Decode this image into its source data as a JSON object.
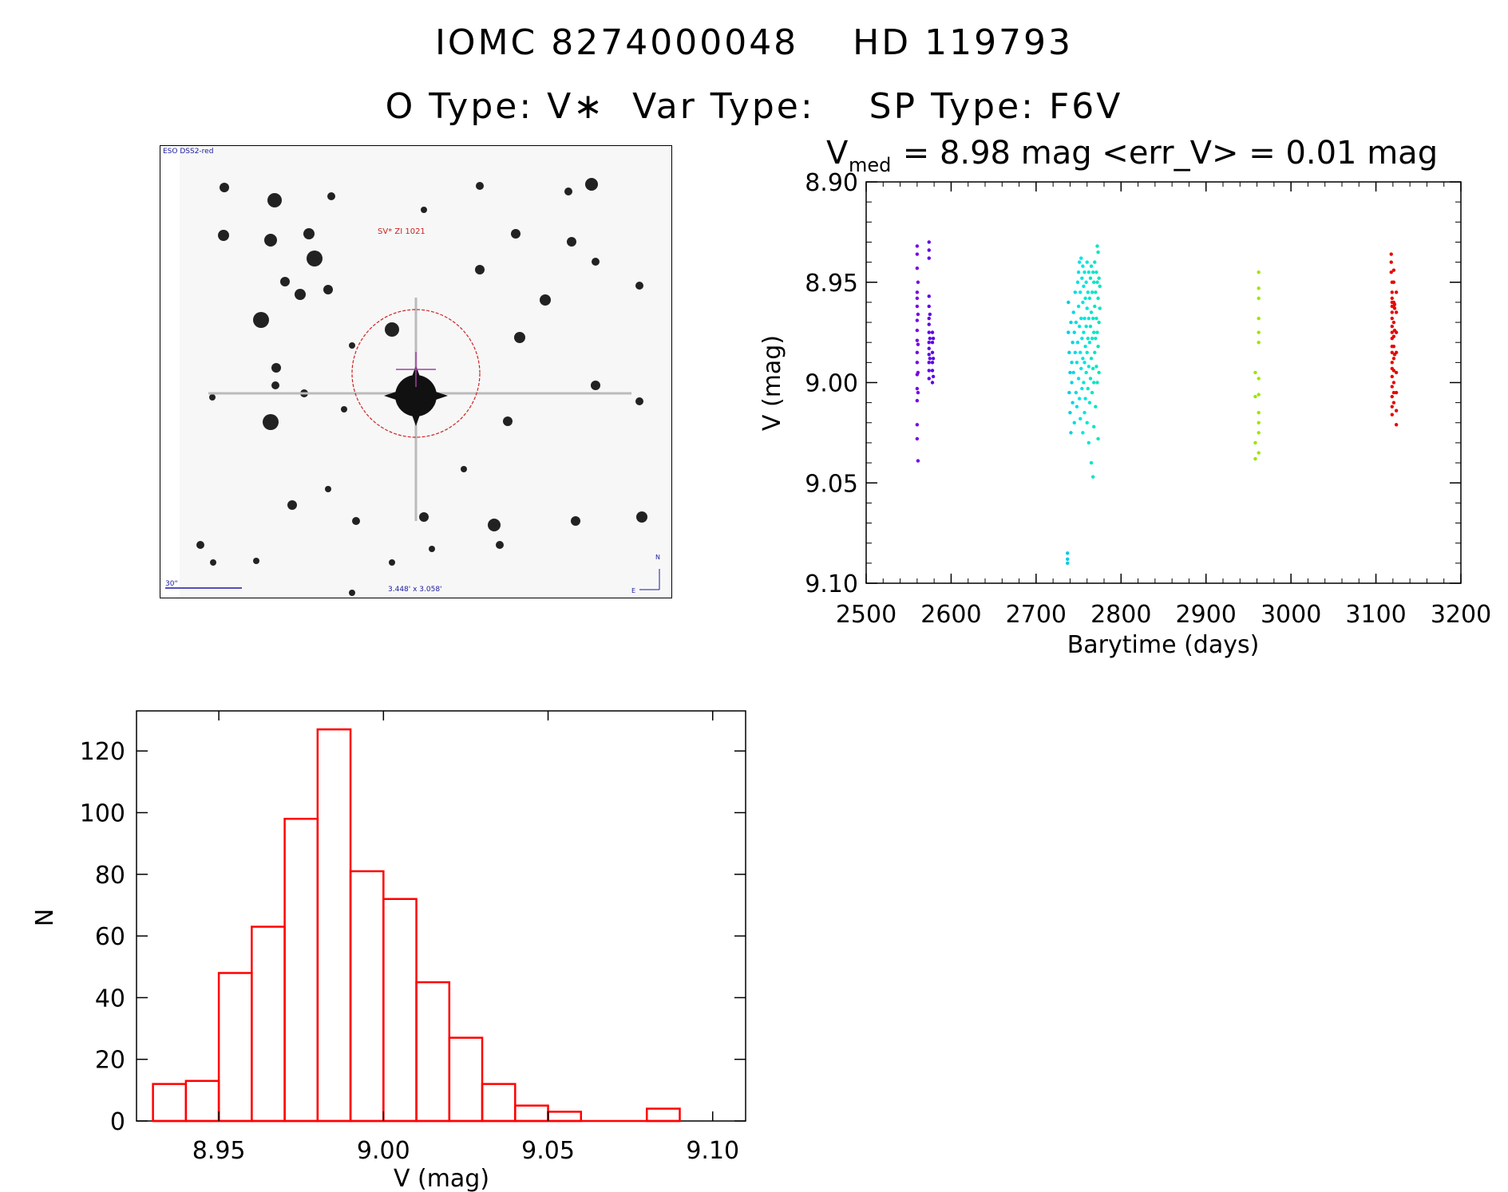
{
  "header": {
    "title_line1": "IOMC 8274000048    HD 119793",
    "title_line2": "O Type: V∗  Var Type:    SP Type: F6V"
  },
  "finder_chart": {
    "survey_label": "ESO DSS2-red",
    "object_label": "SV* ZI 1021",
    "scale_label": "30\"",
    "fov_label": "3.448' x 3.058'",
    "north_label": "N",
    "east_label": "E"
  },
  "chart_data": [
    {
      "type": "scatter",
      "title": "V_med = 8.98 mag <err_V> = 0.01 mag",
      "title_parts": {
        "v": "V",
        "sub": "med",
        "rest": " = 8.98 mag <err_V> = 0.01 mag"
      },
      "xlabel": "Barytime (days)",
      "ylabel": "V (mag)",
      "xlim": [
        2500,
        3200
      ],
      "ylim": [
        9.1,
        8.9
      ],
      "y_inverted": true,
      "xticks": [
        "2500",
        "2600",
        "2700",
        "2800",
        "2900",
        "3000",
        "3100",
        "3200"
      ],
      "yticks": [
        "8.90",
        "8.95",
        "9.00",
        "9.05",
        "9.10"
      ],
      "color_by_time": true,
      "points": [
        [
          2560,
          8.932
        ],
        [
          2560,
          8.936
        ],
        [
          2560,
          8.943
        ],
        [
          2560,
          8.955
        ],
        [
          2560,
          8.958
        ],
        [
          2560,
          8.962
        ],
        [
          2560,
          8.969
        ],
        [
          2560,
          8.974
        ],
        [
          2560,
          8.979
        ],
        [
          2560,
          8.985
        ],
        [
          2560,
          8.99
        ],
        [
          2560,
          8.996
        ],
        [
          2560,
          9.003
        ],
        [
          2560,
          9.009
        ],
        [
          2560,
          9.021
        ],
        [
          2560,
          9.028
        ],
        [
          2561,
          9.039
        ],
        [
          2561,
          8.95
        ],
        [
          2561,
          8.966
        ],
        [
          2561,
          8.981
        ],
        [
          2561,
          8.995
        ],
        [
          2561,
          9.005
        ],
        [
          2574,
          8.93
        ],
        [
          2574,
          8.934
        ],
        [
          2574,
          8.938
        ],
        [
          2574,
          8.957
        ],
        [
          2574,
          8.962
        ],
        [
          2574,
          8.968
        ],
        [
          2574,
          8.971
        ],
        [
          2574,
          8.975
        ],
        [
          2574,
          8.98
        ],
        [
          2574,
          8.983
        ],
        [
          2574,
          8.986
        ],
        [
          2574,
          8.99
        ],
        [
          2574,
          8.994
        ],
        [
          2574,
          8.998
        ],
        [
          2575,
          8.966
        ],
        [
          2575,
          8.978
        ],
        [
          2575,
          8.988
        ],
        [
          2578,
          8.975
        ],
        [
          2578,
          8.98
        ],
        [
          2578,
          8.985
        ],
        [
          2578,
          8.99
        ],
        [
          2578,
          8.994
        ],
        [
          2578,
          9.0
        ],
        [
          2579,
          8.978
        ],
        [
          2579,
          8.988
        ],
        [
          2579,
          8.997
        ],
        [
          2737,
          9.085
        ],
        [
          2737,
          9.088
        ],
        [
          2737,
          9.09
        ],
        [
          2738,
          8.96
        ],
        [
          2738,
          8.975
        ],
        [
          2739,
          8.985
        ],
        [
          2740,
          8.995
        ],
        [
          2739,
          9.005
        ],
        [
          2740,
          9.015
        ],
        [
          2741,
          9.025
        ],
        [
          2741,
          8.97
        ],
        [
          2742,
          8.99
        ],
        [
          2742,
          9.0
        ],
        [
          2743,
          8.98
        ],
        [
          2743,
          9.01
        ],
        [
          2744,
          8.965
        ],
        [
          2744,
          8.995
        ],
        [
          2745,
          8.975
        ],
        [
          2745,
          9.02
        ],
        [
          2746,
          8.955
        ],
        [
          2746,
          8.985
        ],
        [
          2747,
          9.005
        ],
        [
          2747,
          8.97
        ],
        [
          2748,
          8.99
        ],
        [
          2748,
          9.012
        ],
        [
          2749,
          8.95
        ],
        [
          2749,
          8.98
        ],
        [
          2750,
          8.945
        ],
        [
          2750,
          8.962
        ],
        [
          2750,
          8.998
        ],
        [
          2751,
          8.94
        ],
        [
          2751,
          8.972
        ],
        [
          2751,
          9.008
        ],
        [
          2752,
          8.955
        ],
        [
          2752,
          8.985
        ],
        [
          2752,
          9.018
        ],
        [
          2753,
          8.938
        ],
        [
          2753,
          8.968
        ],
        [
          2753,
          8.993
        ],
        [
          2754,
          8.948
        ],
        [
          2754,
          8.978
        ],
        [
          2754,
          9.003
        ],
        [
          2755,
          8.942
        ],
        [
          2755,
          8.96
        ],
        [
          2755,
          8.988
        ],
        [
          2755,
          9.025
        ],
        [
          2756,
          8.952
        ],
        [
          2756,
          8.975
        ],
        [
          2756,
          9.0
        ],
        [
          2757,
          8.945
        ],
        [
          2757,
          8.968
        ],
        [
          2757,
          8.99
        ],
        [
          2757,
          9.015
        ],
        [
          2758,
          8.958
        ],
        [
          2758,
          8.982
        ],
        [
          2758,
          9.008
        ],
        [
          2759,
          8.95
        ],
        [
          2759,
          8.972
        ],
        [
          2759,
          8.995
        ],
        [
          2760,
          8.94
        ],
        [
          2760,
          8.963
        ],
        [
          2760,
          8.985
        ],
        [
          2760,
          9.02
        ],
        [
          2761,
          8.955
        ],
        [
          2761,
          8.978
        ],
        [
          2761,
          9.003
        ],
        [
          2762,
          8.945
        ],
        [
          2762,
          8.968
        ],
        [
          2762,
          8.992
        ],
        [
          2762,
          9.03
        ],
        [
          2763,
          8.958
        ],
        [
          2763,
          8.98
        ],
        [
          2763,
          9.01
        ],
        [
          2764,
          8.948
        ],
        [
          2764,
          8.972
        ],
        [
          2764,
          8.998
        ],
        [
          2765,
          8.942
        ],
        [
          2765,
          8.965
        ],
        [
          2765,
          8.988
        ],
        [
          2765,
          9.04
        ],
        [
          2766,
          8.955
        ],
        [
          2766,
          8.978
        ],
        [
          2766,
          9.005
        ],
        [
          2767,
          8.945
        ],
        [
          2767,
          8.968
        ],
        [
          2767,
          8.993
        ],
        [
          2767,
          9.047
        ],
        [
          2768,
          8.95
        ],
        [
          2768,
          8.975
        ],
        [
          2768,
          9.0
        ],
        [
          2768,
          9.022
        ],
        [
          2769,
          8.94
        ],
        [
          2769,
          8.962
        ],
        [
          2769,
          8.985
        ],
        [
          2770,
          8.955
        ],
        [
          2770,
          8.978
        ],
        [
          2770,
          9.012
        ],
        [
          2771,
          8.945
        ],
        [
          2771,
          8.968
        ],
        [
          2771,
          8.992
        ],
        [
          2772,
          8.932
        ],
        [
          2772,
          8.95
        ],
        [
          2772,
          8.975
        ],
        [
          2772,
          9.0
        ],
        [
          2773,
          8.935
        ],
        [
          2773,
          8.958
        ],
        [
          2773,
          8.982
        ],
        [
          2773,
          9.028
        ],
        [
          2774,
          8.948
        ],
        [
          2774,
          8.97
        ],
        [
          2774,
          8.995
        ],
        [
          2775,
          8.952
        ],
        [
          2775,
          8.963
        ],
        [
          2958,
          8.995
        ],
        [
          2958,
          9.007
        ],
        [
          2958,
          9.03
        ],
        [
          2958,
          9.038
        ],
        [
          2962,
          8.945
        ],
        [
          2962,
          8.953
        ],
        [
          2962,
          8.958
        ],
        [
          2962,
          8.968
        ],
        [
          2962,
          8.975
        ],
        [
          2962,
          8.98
        ],
        [
          2962,
          8.998
        ],
        [
          2962,
          9.006
        ],
        [
          2962,
          9.015
        ],
        [
          2962,
          9.02
        ],
        [
          2962,
          9.025
        ],
        [
          2962,
          9.035
        ],
        [
          3118,
          8.936
        ],
        [
          3118,
          8.94
        ],
        [
          3118,
          8.945
        ],
        [
          3119,
          8.95
        ],
        [
          3119,
          8.955
        ],
        [
          3119,
          8.958
        ],
        [
          3119,
          8.96
        ],
        [
          3119,
          8.962
        ],
        [
          3119,
          8.965
        ],
        [
          3119,
          8.968
        ],
        [
          3119,
          8.972
        ],
        [
          3119,
          8.975
        ],
        [
          3119,
          8.978
        ],
        [
          3119,
          8.982
        ],
        [
          3119,
          8.985
        ],
        [
          3119,
          8.99
        ],
        [
          3119,
          8.993
        ],
        [
          3119,
          8.997
        ],
        [
          3119,
          9.002
        ],
        [
          3119,
          9.007
        ],
        [
          3119,
          9.012
        ],
        [
          3119,
          9.016
        ],
        [
          3121,
          8.944
        ],
        [
          3121,
          8.95
        ],
        [
          3121,
          8.96
        ],
        [
          3121,
          8.962
        ],
        [
          3121,
          8.97
        ],
        [
          3121,
          8.977
        ],
        [
          3121,
          8.982
        ],
        [
          3121,
          8.988
        ],
        [
          3121,
          8.994
        ],
        [
          3121,
          9.0
        ],
        [
          3121,
          9.005
        ],
        [
          3121,
          9.01
        ],
        [
          3122,
          8.961
        ],
        [
          3122,
          8.963
        ],
        [
          3122,
          8.974
        ],
        [
          3122,
          8.986
        ],
        [
          3124,
          8.955
        ],
        [
          3124,
          8.965
        ],
        [
          3124,
          8.975
        ],
        [
          3124,
          8.985
        ],
        [
          3124,
          8.995
        ],
        [
          3124,
          9.005
        ],
        [
          3124,
          9.014
        ],
        [
          3124,
          9.021
        ]
      ]
    },
    {
      "type": "bar",
      "subtype": "histogram",
      "title": "",
      "xlabel": "V (mag)",
      "ylabel": "N",
      "xlim": [
        8.925,
        9.11
      ],
      "ylim": [
        0,
        133
      ],
      "xticks": [
        "8.95",
        "9.00",
        "9.05",
        "9.10"
      ],
      "yticks": [
        "0",
        "20",
        "40",
        "60",
        "80",
        "100",
        "120"
      ],
      "bin_edges": [
        8.93,
        8.94,
        8.95,
        8.96,
        8.97,
        8.98,
        8.99,
        9.0,
        9.01,
        9.02,
        9.03,
        9.04,
        9.05,
        9.06,
        9.07,
        9.08,
        9.09
      ],
      "counts": [
        12,
        13,
        48,
        63,
        98,
        127,
        81,
        72,
        45,
        27,
        12,
        5,
        3,
        0,
        0,
        4
      ],
      "bar_color": "#ff0000"
    }
  ]
}
